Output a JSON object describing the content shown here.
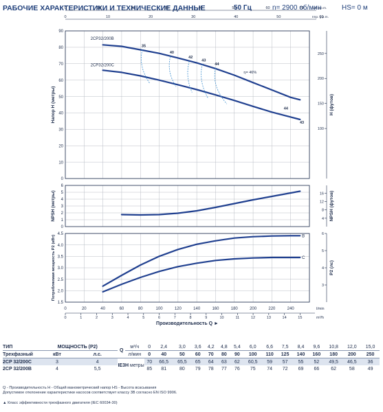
{
  "header": {
    "title": "РАБОЧИЕ ХАРАКТЕРИСТИКИ И ТЕХНИЧЕСКИЕ ДАННЫЕ",
    "frequency": "50 Гц",
    "speed": "n= 2900 об/мин",
    "hs": "HS= 0 м"
  },
  "top_axes": [
    {
      "unit": "US g.p.m.",
      "ticks": [
        "0",
        "10",
        "20",
        "30",
        "40",
        "50",
        "60",
        "70"
      ]
    },
    {
      "unit": "Imp. g.p.m.",
      "ticks": [
        "0",
        "10",
        "20",
        "30",
        "40",
        "50",
        "60"
      ]
    }
  ],
  "colors": {
    "curve": "#1f3f8f",
    "efficiency": "#3d8fd0",
    "grid": "#b8bcc4",
    "text": "#1c2b4a",
    "title": "#1f3f7a"
  },
  "chart_data": [
    {
      "type": "line",
      "ylabel": "Напор H (метры)",
      "y2label": "H (футов)",
      "ylim": [
        0,
        90
      ],
      "yticks": [
        "0",
        "10",
        "20",
        "30",
        "40",
        "50",
        "60",
        "70",
        "80",
        "90"
      ],
      "y2lim": [
        0,
        295
      ],
      "y2ticks": [
        "100",
        "150",
        "200",
        "250"
      ],
      "grid": true,
      "series": [
        {
          "name": "2CP32/200B",
          "x": [
            40,
            60,
            80,
            100,
            120,
            140,
            160,
            180,
            200,
            220,
            240,
            250
          ],
          "y": [
            81.5,
            80.6,
            78.5,
            76.3,
            73.5,
            70.5,
            67.0,
            63.0,
            58.5,
            54.0,
            49.5,
            48.0
          ]
        },
        {
          "name": "2CP32/200C",
          "x": [
            40,
            60,
            80,
            100,
            120,
            140,
            160,
            180,
            200,
            220,
            240,
            250
          ],
          "y": [
            66.0,
            64.7,
            62.6,
            60.0,
            57.2,
            54.2,
            51.0,
            47.6,
            44.0,
            40.5,
            37.5,
            36.0
          ]
        }
      ],
      "efficiency_labels": [
        "35",
        "40",
        "42",
        "43",
        "44",
        "η= 46%",
        "44",
        "43"
      ]
    },
    {
      "type": "line",
      "ylabel": "NPSH (метры)",
      "y2label": "NPSH (футов)",
      "ylim": [
        0,
        6
      ],
      "yticks": [
        "0",
        "1",
        "2",
        "3",
        "4",
        "5",
        "6"
      ],
      "y2ticks": [
        "4",
        "8",
        "12",
        "16"
      ],
      "grid": true,
      "series": [
        {
          "name": "NPSH",
          "x": [
            60,
            80,
            100,
            120,
            140,
            160,
            180,
            200,
            220,
            240,
            250
          ],
          "y": [
            1.75,
            1.7,
            1.75,
            1.95,
            2.3,
            2.8,
            3.35,
            3.9,
            4.4,
            4.9,
            5.15
          ]
        }
      ]
    },
    {
      "type": "line",
      "ylabel": "Потребляемая мощность P2 (кВт)",
      "y2label": "P2 (лс)",
      "ylim": [
        1.5,
        4.5
      ],
      "yticks": [
        "1.5",
        "2.0",
        "2.5",
        "3.0",
        "3.5",
        "4.0",
        "4.5"
      ],
      "y2ticks": [
        "3",
        "4",
        "5",
        "6"
      ],
      "grid": true,
      "series": [
        {
          "name": "B",
          "x": [
            40,
            60,
            80,
            100,
            120,
            140,
            160,
            180,
            200,
            220,
            240,
            250
          ],
          "y": [
            2.2,
            2.67,
            3.12,
            3.5,
            3.8,
            4.03,
            4.18,
            4.3,
            4.36,
            4.39,
            4.4,
            4.4
          ]
        },
        {
          "name": "C",
          "x": [
            40,
            60,
            80,
            100,
            120,
            140,
            160,
            180,
            200,
            220,
            240,
            250
          ],
          "y": [
            1.95,
            2.28,
            2.58,
            2.84,
            3.05,
            3.2,
            3.32,
            3.39,
            3.43,
            3.45,
            3.45,
            3.45
          ]
        }
      ],
      "xticks_lmin": [
        "0",
        "20",
        "40",
        "60",
        "80",
        "100",
        "120",
        "140",
        "160",
        "180",
        "200",
        "220",
        "240"
      ],
      "x_unit_lmin": "l/min",
      "xticks_m3h": [
        "0",
        "1",
        "2",
        "3",
        "4",
        "5",
        "6",
        "7",
        "8",
        "9",
        "10",
        "11",
        "12",
        "13",
        "14",
        "15"
      ],
      "x_unit_m3h": "m³/h",
      "xlabel": "Производительность Q"
    }
  ],
  "table": {
    "col_type": "ТИП",
    "col_power": "МОЩНОСТЬ (P2)",
    "q_label": "Q",
    "unit_m3h": "м³/ч",
    "unit_lmin": "л/мин",
    "subtitle": "Трехфазный",
    "unit_kw": "кВт",
    "unit_hp": "л.с.",
    "ie": "IE3",
    "h_label": "H",
    "h_unit": "метры",
    "q_m3h": [
      "0",
      "2,4",
      "3,0",
      "3,6",
      "4,2",
      "4,8",
      "5,4",
      "6,0",
      "6,6",
      "7,5",
      "8,4",
      "9,6",
      "10,8",
      "12,0",
      "15,0"
    ],
    "q_lmin": [
      "0",
      "40",
      "50",
      "60",
      "70",
      "80",
      "90",
      "100",
      "110",
      "125",
      "140",
      "160",
      "180",
      "200",
      "250"
    ],
    "rows": [
      {
        "type": "2CP 32/200C",
        "kw": "3",
        "hp": "4",
        "h": [
          "70",
          "66,5",
          "65,5",
          "65",
          "64",
          "63",
          "62",
          "60,5",
          "59",
          "57",
          "55",
          "52",
          "49,5",
          "46,5",
          "36"
        ]
      },
      {
        "type": "2CP 32/200B",
        "kw": "4",
        "hp": "5,5",
        "h": [
          "85",
          "81",
          "80",
          "79",
          "78",
          "77",
          "76",
          "75",
          "74",
          "72",
          "69",
          "66",
          "62",
          "58",
          "49"
        ]
      }
    ]
  },
  "notes": {
    "line1": "Q - Производительность   H - Общий манометрический напор   HS - Высота всасывания",
    "line2": "Допустимое отклонение характеристики насосов соответствует классу 3B согласно EN ISO 9906.",
    "ie_note": "▲ Класс эффективности трехфазного двигателя (IEC 60034-30)"
  }
}
